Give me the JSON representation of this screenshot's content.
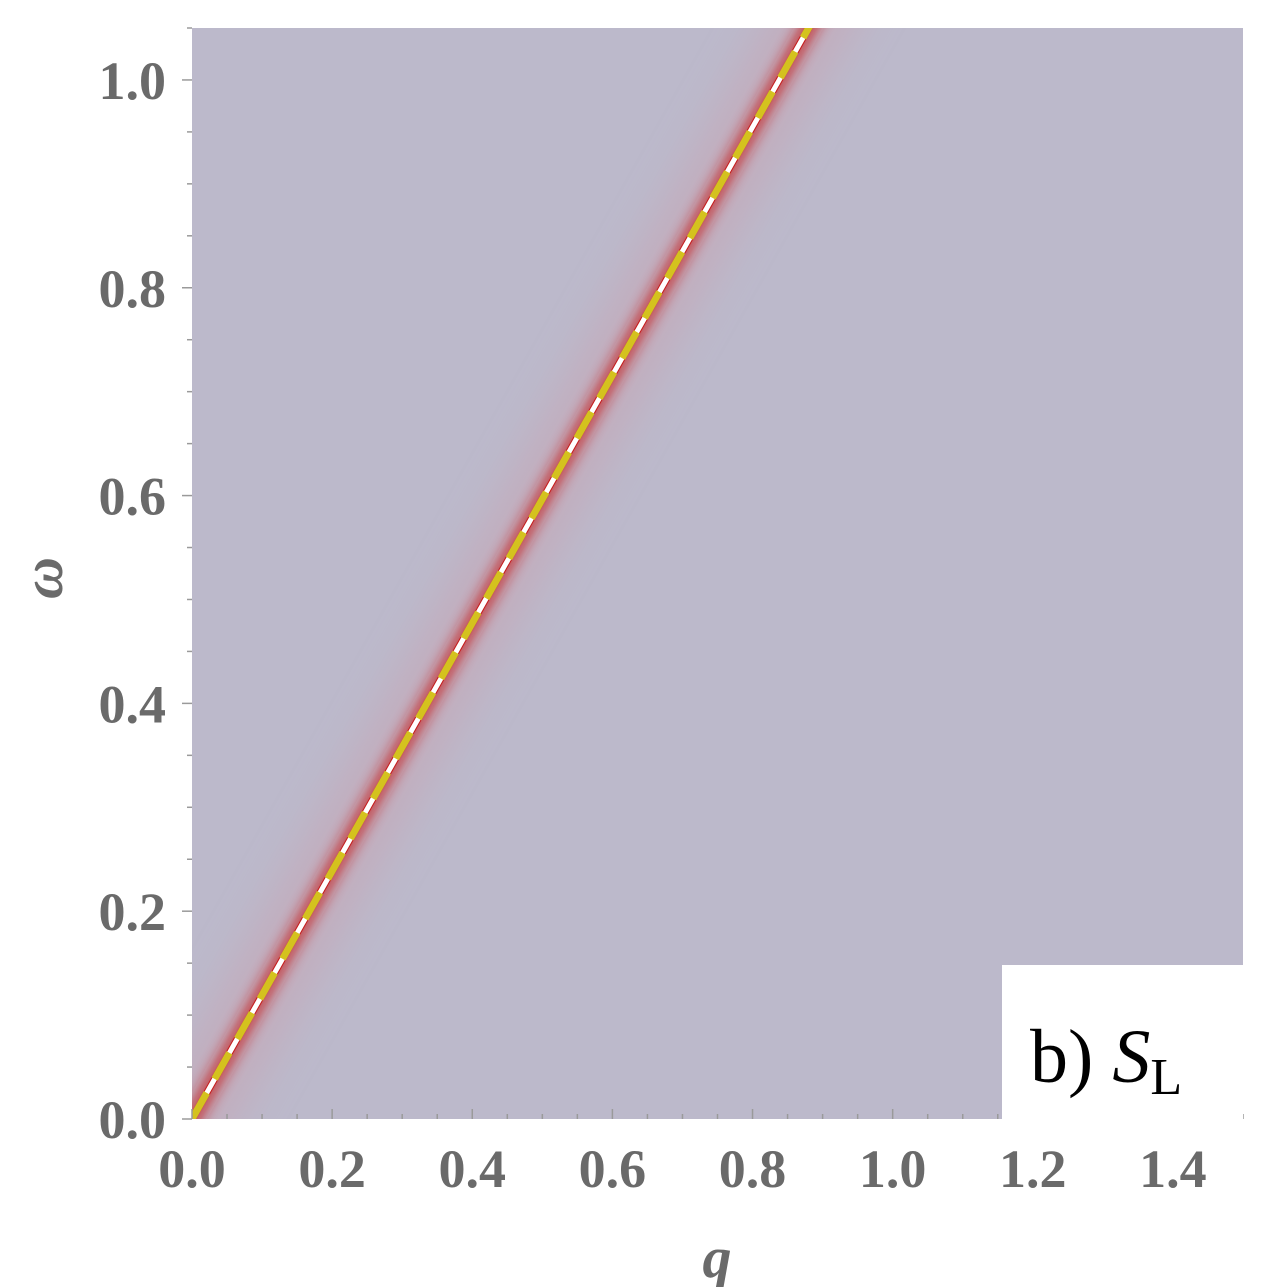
{
  "chart_data": {
    "type": "heatmap",
    "title": "",
    "xlabel": "q",
    "ylabel": "ω",
    "xlim": [
      0.0,
      1.5
    ],
    "ylim": [
      0.0,
      1.05
    ],
    "x_ticks": [
      "0.0",
      "0.2",
      "0.4",
      "0.6",
      "0.8",
      "1.0",
      "1.2",
      "1.4"
    ],
    "y_ticks": [
      "0.0",
      "0.2",
      "0.4",
      "0.6",
      "0.8",
      "1.0"
    ],
    "x_tick_values": [
      0.0,
      0.2,
      0.4,
      0.6,
      0.8,
      1.0,
      1.2,
      1.4
    ],
    "y_tick_values": [
      0.0,
      0.2,
      0.4,
      0.6,
      0.8,
      1.0
    ],
    "panel_label": {
      "prefix": "b) ",
      "symbol": "S",
      "subscript": "L"
    },
    "background_color": "#bcb9cb",
    "peak_color": "#c41a1a",
    "series": [
      {
        "style": "dashed",
        "color": "#d4c21e",
        "x": [
          0.0,
          0.88
        ],
        "y": [
          0.0,
          1.05
        ]
      }
    ]
  }
}
